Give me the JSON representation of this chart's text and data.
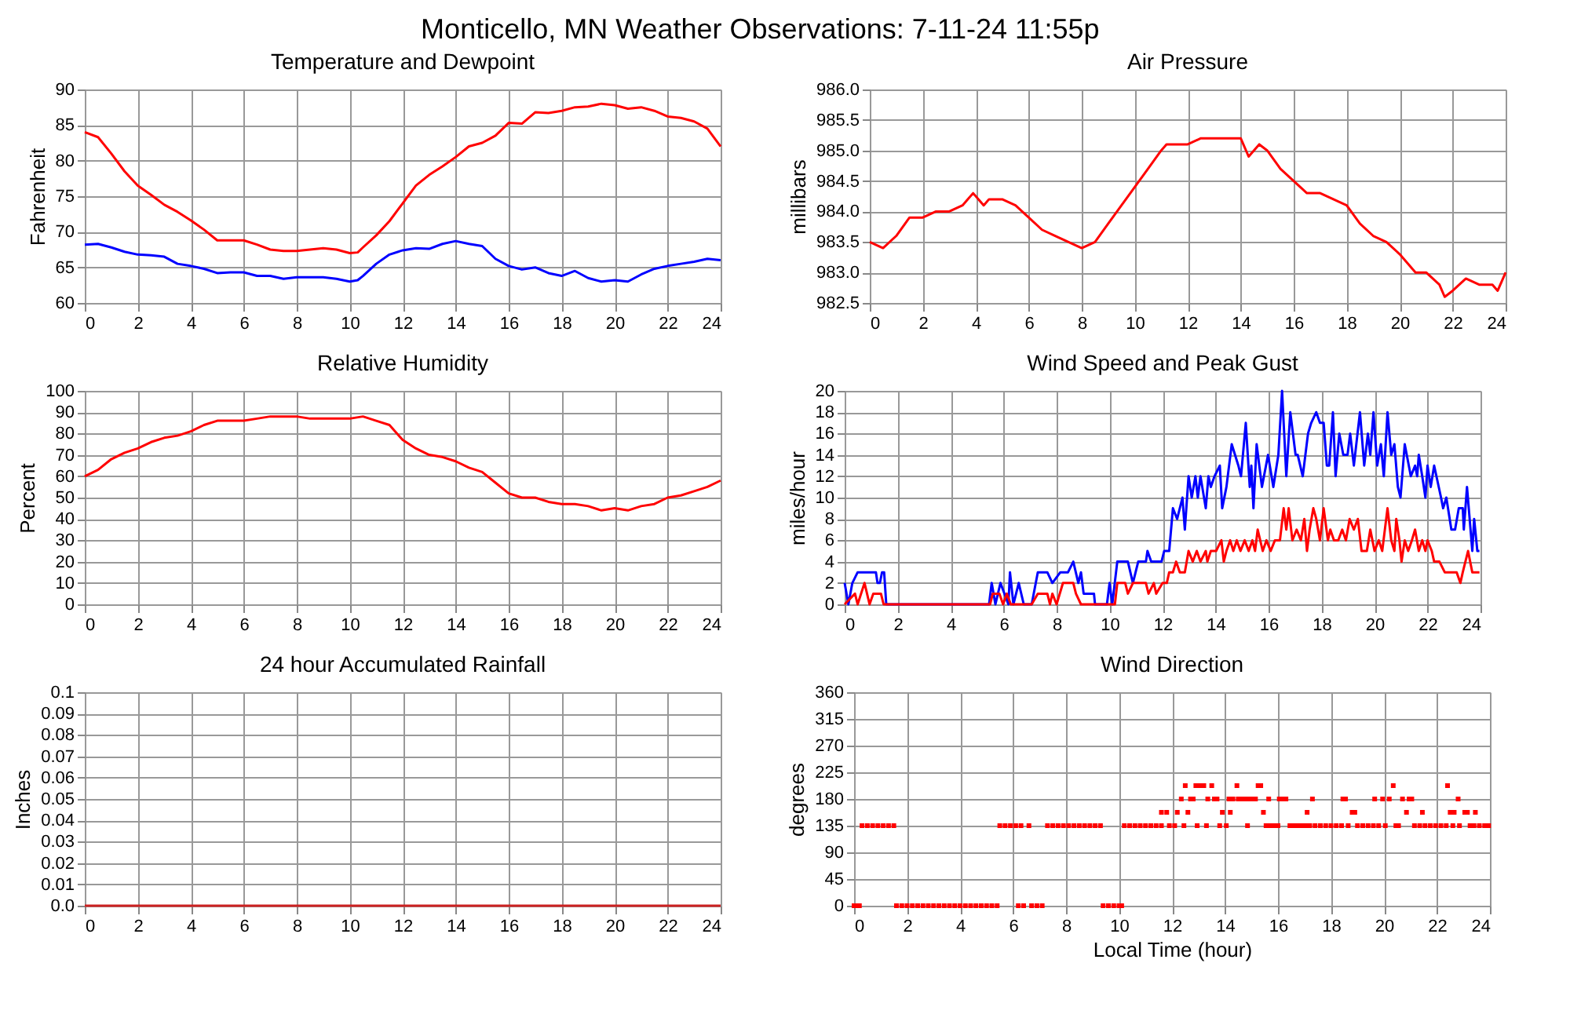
{
  "chart_data": [
    {
      "type": "line",
      "title": "Temperature and Dewpoint",
      "ylabel": "Fahrenheit",
      "annotations": [
        "Monticello, MN Weather Observations: 7-11-24 11:55p"
      ],
      "xlim": [
        0,
        24
      ],
      "xticks": [
        0,
        2,
        4,
        6,
        8,
        10,
        12,
        14,
        16,
        18,
        20,
        22,
        24
      ],
      "ylim": [
        60,
        90
      ],
      "yticks": [
        60,
        65,
        70,
        75,
        80,
        85,
        90
      ],
      "grid": true,
      "x": [
        0,
        0.5,
        1,
        1.5,
        2,
        2.5,
        3,
        3.5,
        4,
        4.5,
        5,
        5.5,
        6,
        6.5,
        7,
        7.5,
        8,
        8.5,
        9,
        9.5,
        10,
        10.3,
        10.5,
        11,
        11.5,
        12,
        12.5,
        13,
        13.5,
        14,
        14.5,
        15,
        15.5,
        16,
        16.5,
        17,
        17.5,
        18,
        18.5,
        19,
        19.5,
        20,
        20.5,
        21,
        21.5,
        22,
        22.5,
        23,
        23.5,
        24
      ],
      "series": [
        {
          "color": "#ff0000",
          "values": [
            84,
            83.3,
            81,
            78.5,
            76.5,
            75.2,
            73.8,
            72.8,
            71.6,
            70.3,
            68.8,
            68.8,
            68.8,
            68.2,
            67.5,
            67.3,
            67.3,
            67.5,
            67.7,
            67.5,
            67,
            67.1,
            67.8,
            69.5,
            71.5,
            74,
            76.5,
            78,
            79.2,
            80.5,
            82,
            82.5,
            83.5,
            85.3,
            85.2,
            86.8,
            86.7,
            87,
            87.5,
            87.6,
            88,
            87.8,
            87.3,
            87.5,
            87,
            86.2,
            86,
            85.5,
            84.5,
            82
          ]
        },
        {
          "color": "#0000ff",
          "values": [
            68.2,
            68.3,
            67.8,
            67.2,
            66.8,
            66.7,
            66.5,
            65.5,
            65.2,
            64.8,
            64.2,
            64.3,
            64.3,
            63.8,
            63.8,
            63.4,
            63.6,
            63.6,
            63.6,
            63.4,
            63,
            63.2,
            63.8,
            65.5,
            66.8,
            67.4,
            67.7,
            67.6,
            68.3,
            68.7,
            68.3,
            68,
            66.2,
            65.2,
            64.7,
            65,
            64.2,
            63.8,
            64.5,
            63.5,
            63,
            63.2,
            63,
            64,
            64.8,
            65.2,
            65.5,
            65.8,
            66.2,
            66
          ]
        }
      ]
    },
    {
      "type": "line",
      "title": "Air Pressure",
      "ylabel": "millibars",
      "xlim": [
        0,
        24
      ],
      "xticks": [
        0,
        2,
        4,
        6,
        8,
        10,
        12,
        14,
        16,
        18,
        20,
        22,
        24
      ],
      "ylim": [
        982.5,
        986
      ],
      "yticks": [
        982.5,
        {
          "value": 983,
          "label": "983.0"
        },
        983.5,
        {
          "value": 984,
          "label": "984.0"
        },
        984.5,
        {
          "value": 985,
          "label": "985.0"
        },
        985.5,
        {
          "value": 986,
          "label": "986.0"
        }
      ],
      "grid": true,
      "series": [
        {
          "color": "#ff0000",
          "x": [
            0,
            0.5,
            1,
            1.5,
            2,
            2.5,
            3,
            3.5,
            3.9,
            4.3,
            4.5,
            5,
            5.5,
            6,
            6.5,
            7,
            7.5,
            8,
            8.5,
            9,
            9.5,
            10,
            10.5,
            11,
            11.2,
            11.5,
            12,
            12.5,
            13,
            13.5,
            14,
            14.1,
            14.3,
            14.7,
            15,
            15.5,
            16,
            16.5,
            17,
            17.5,
            18,
            18.5,
            19,
            19.5,
            20,
            20.6,
            21,
            21.5,
            21.7,
            22,
            22.5,
            23,
            23.5,
            23.7,
            24
          ],
          "values": [
            983.5,
            983.4,
            983.6,
            983.9,
            983.9,
            984.0,
            984.0,
            984.1,
            984.3,
            984.1,
            984.2,
            984.2,
            984.1,
            983.9,
            983.7,
            983.6,
            983.5,
            983.4,
            983.5,
            983.8,
            984.1,
            984.4,
            984.7,
            985.0,
            985.1,
            985.1,
            985.1,
            985.2,
            985.2,
            985.2,
            985.2,
            985.1,
            984.9,
            985.1,
            985.0,
            984.7,
            984.5,
            984.3,
            984.3,
            984.2,
            984.1,
            983.8,
            983.6,
            983.5,
            983.3,
            983.0,
            983.0,
            982.8,
            982.6,
            982.7,
            982.9,
            982.8,
            982.8,
            982.7,
            983.0
          ]
        }
      ]
    },
    {
      "type": "line",
      "title": "Relative Humidity",
      "ylabel": "Percent",
      "xlim": [
        0,
        24
      ],
      "xticks": [
        0,
        2,
        4,
        6,
        8,
        10,
        12,
        14,
        16,
        18,
        20,
        22,
        24
      ],
      "ylim": [
        0,
        100
      ],
      "yticks": [
        0,
        10,
        20,
        30,
        40,
        50,
        60,
        70,
        80,
        90,
        100
      ],
      "grid": true,
      "series": [
        {
          "color": "#ff0000",
          "x": [
            0,
            0.5,
            1,
            1.5,
            2,
            2.5,
            3,
            3.5,
            4,
            4.5,
            5,
            5.5,
            6,
            6.5,
            7,
            7.5,
            8,
            8.5,
            9,
            9.5,
            10,
            10.5,
            11,
            11.5,
            12,
            12.5,
            13,
            13.5,
            14,
            14.5,
            15,
            15.5,
            16,
            16.5,
            17,
            17.5,
            18,
            18.5,
            19,
            19.5,
            20,
            20.5,
            21,
            21.5,
            22,
            22.5,
            23,
            23.5,
            24
          ],
          "values": [
            60,
            63,
            68,
            71,
            73,
            76,
            78,
            79,
            81,
            84,
            86,
            86,
            86,
            87,
            88,
            88,
            88,
            87,
            87,
            87,
            87,
            88,
            86,
            84,
            77,
            73,
            70,
            69,
            67,
            64,
            62,
            57,
            52,
            50,
            50,
            48,
            47,
            47,
            46,
            44,
            45,
            44,
            46,
            47,
            50,
            51,
            53,
            55,
            58
          ]
        }
      ]
    },
    {
      "type": "line",
      "title": "Wind Speed and Peak Gust",
      "ylabel": "miles/hour",
      "xlim": [
        0,
        24
      ],
      "xticks": [
        0,
        2,
        4,
        6,
        8,
        10,
        12,
        14,
        16,
        18,
        20,
        22,
        24
      ],
      "ylim": [
        0,
        20
      ],
      "yticks": [
        0,
        2,
        4,
        6,
        8,
        10,
        12,
        14,
        16,
        18,
        20
      ],
      "grid": true,
      "series": [
        {
          "color": "#0000ff",
          "x": [
            0,
            0.14,
            0.29,
            0.49,
            1.18,
            1.24,
            1.33,
            1.41,
            1.49,
            1.57,
            5.45,
            5.55,
            5.69,
            5.88,
            6.18,
            6.24,
            6.37,
            6.57,
            6.76,
            7.06,
            7.29,
            7.65,
            7.84,
            8.14,
            8.43,
            8.63,
            8.82,
            8.92,
            9.02,
            9.41,
            9.45,
            9.9,
            10.0,
            10.1,
            10.29,
            10.69,
            10.88,
            11.08,
            11.37,
            11.43,
            11.57,
            11.96,
            12.06,
            12.25,
            12.39,
            12.55,
            12.75,
            12.84,
            12.98,
            13.1,
            13.24,
            13.33,
            13.43,
            13.63,
            13.73,
            13.82,
            13.96,
            14.16,
            14.25,
            14.41,
            14.61,
            14.86,
            14.96,
            15.14,
            15.29,
            15.35,
            15.43,
            15.55,
            15.75,
            15.98,
            16.18,
            16.37,
            16.51,
            16.67,
            16.82,
            17.02,
            17.1,
            17.29,
            17.49,
            17.61,
            17.8,
            17.94,
            18.08,
            18.2,
            18.29,
            18.43,
            18.53,
            18.67,
            18.82,
            18.98,
            19.08,
            19.22,
            19.45,
            19.61,
            19.75,
            19.84,
            19.96,
            20.1,
            20.24,
            20.35,
            20.49,
            20.63,
            20.75,
            20.88,
            20.98,
            21.14,
            21.37,
            21.53,
            21.61,
            21.67,
            21.8,
            21.92,
            22.0,
            22.12,
            22.25,
            22.51,
            22.59,
            22.71,
            22.9,
            23.04,
            23.18,
            23.33,
            23.37,
            23.49,
            23.69,
            23.76,
            23.88,
            23.96
          ],
          "values": [
            2,
            0,
            2,
            3,
            3,
            2,
            2,
            3,
            3,
            0,
            0,
            2,
            0,
            2,
            0,
            3,
            0,
            2,
            0,
            0,
            3,
            3,
            2,
            3,
            3,
            4,
            2,
            3,
            1,
            1,
            0,
            0,
            2,
            0,
            4,
            4,
            2,
            4,
            4,
            5,
            4,
            4,
            5,
            5,
            9,
            8,
            10,
            7,
            12,
            10,
            12,
            10,
            12,
            9,
            12,
            11,
            12,
            13,
            9,
            11,
            15,
            13,
            12,
            17,
            11,
            13,
            9,
            15,
            11,
            14,
            11,
            14,
            20,
            12,
            18,
            14,
            14,
            12,
            16,
            17,
            18,
            17,
            17,
            13,
            13,
            18,
            12,
            16,
            14,
            14,
            16,
            13,
            18,
            13,
            16,
            14,
            18,
            13,
            15,
            12,
            18,
            14,
            15,
            11,
            10,
            15,
            12,
            13,
            12,
            14,
            12,
            10,
            13,
            11,
            13,
            10,
            9,
            10,
            7,
            7,
            9,
            9,
            7,
            11,
            5,
            8,
            5,
            5
          ]
        },
        {
          "color": "#ff0000",
          "x": [
            0,
            0.39,
            0.49,
            0.75,
            0.94,
            1.08,
            1.37,
            1.47,
            5.49,
            5.59,
            5.84,
            5.98,
            6.12,
            6.27,
            7.06,
            7.29,
            7.65,
            7.75,
            7.84,
            8.0,
            8.24,
            8.63,
            8.73,
            8.92,
            10.2,
            10.29,
            10.59,
            10.69,
            10.88,
            11.37,
            11.47,
            11.67,
            11.76,
            12.0,
            12.16,
            12.25,
            12.39,
            12.51,
            12.65,
            12.84,
            12.98,
            13.14,
            13.29,
            13.43,
            13.63,
            13.69,
            13.82,
            14.02,
            14.22,
            14.31,
            14.41,
            14.55,
            14.67,
            14.8,
            14.94,
            15.1,
            15.25,
            15.39,
            15.49,
            15.59,
            15.78,
            15.92,
            16.08,
            16.24,
            16.43,
            16.57,
            16.67,
            16.76,
            16.9,
            17.06,
            17.22,
            17.35,
            17.45,
            17.55,
            17.69,
            17.8,
            17.94,
            18.08,
            18.24,
            18.33,
            18.47,
            18.63,
            18.78,
            18.92,
            19.06,
            19.22,
            19.37,
            19.51,
            19.71,
            19.84,
            20.0,
            20.16,
            20.29,
            20.49,
            20.63,
            20.75,
            20.82,
            20.94,
            21.02,
            21.14,
            21.27,
            21.41,
            21.53,
            21.67,
            21.8,
            21.92,
            22.0,
            22.16,
            22.25,
            22.45,
            22.65,
            23.1,
            23.24,
            23.33,
            23.53,
            23.69,
            23.96
          ],
          "values": [
            0,
            1,
            0,
            2,
            0,
            1,
            1,
            0,
            0,
            1,
            1,
            0,
            1,
            0,
            0,
            1,
            1,
            0,
            1,
            0,
            2,
            2,
            1,
            0,
            0,
            2,
            2,
            1,
            2,
            2,
            1,
            2,
            1,
            2,
            2,
            3,
            3,
            4,
            3,
            3,
            5,
            4,
            5,
            4,
            5,
            4,
            5,
            5,
            6,
            4,
            5,
            6,
            5,
            6,
            5,
            6,
            5,
            6,
            5,
            7,
            5,
            6,
            5,
            6,
            6,
            9,
            7,
            9,
            6,
            7,
            6,
            8,
            5,
            7,
            9,
            8,
            6,
            9,
            6,
            7,
            6,
            6,
            7,
            6,
            8,
            7,
            8,
            5,
            5,
            7,
            5,
            6,
            5,
            9,
            6,
            5,
            8,
            6,
            4,
            6,
            5,
            6,
            7,
            5,
            6,
            5,
            6,
            5,
            4,
            4,
            3,
            3,
            2,
            3,
            5,
            3,
            3
          ]
        }
      ]
    },
    {
      "type": "line",
      "title": "24 hour Accumulated Rainfall",
      "ylabel": "Inches",
      "xlim": [
        0,
        24
      ],
      "xticks": [
        0,
        2,
        4,
        6,
        8,
        10,
        12,
        14,
        16,
        18,
        20,
        22,
        24
      ],
      "ylim": [
        0,
        0.1
      ],
      "yticks": [
        {
          "value": 0,
          "label": "0.0"
        },
        0.01,
        0.02,
        0.03,
        0.04,
        0.05,
        0.06,
        0.07,
        0.08,
        0.09,
        {
          "value": 0.1,
          "label": "0.1"
        }
      ],
      "grid": true,
      "series": [
        {
          "color": "#cc2222",
          "x": [
            0,
            24
          ],
          "values": [
            0,
            0
          ]
        }
      ]
    },
    {
      "type": "scatter",
      "title": "Wind Direction",
      "ylabel": "degrees",
      "xlabel": "Local Time (hour)",
      "marker": "square",
      "xlim": [
        0,
        24
      ],
      "xticks": [
        0,
        2,
        4,
        6,
        8,
        10,
        12,
        14,
        16,
        18,
        20,
        22,
        24
      ],
      "ylim": [
        0,
        360
      ],
      "yticks": [
        0,
        45,
        90,
        135,
        180,
        225,
        270,
        315,
        360
      ],
      "grid": true,
      "series": [
        {
          "color": "#ff0000",
          "x": [
            0,
            0.1,
            0.2,
            0.3,
            0.5,
            0.7,
            0.9,
            1.1,
            1.3,
            1.5,
            1.6,
            1.8,
            2.0,
            2.2,
            2.4,
            2.6,
            2.8,
            3.0,
            3.2,
            3.4,
            3.6,
            3.8,
            4.0,
            4.2,
            4.4,
            4.6,
            4.8,
            5.0,
            5.2,
            5.4,
            5.5,
            5.7,
            5.9,
            6.1,
            6.3,
            6.6,
            6.2,
            6.4,
            6.7,
            6.9,
            7.1,
            7.3,
            7.5,
            7.7,
            7.9,
            8.1,
            8.3,
            8.5,
            8.7,
            8.9,
            9.1,
            9.3,
            9.4,
            9.6,
            9.8,
            10.0,
            10.1,
            10.2,
            10.4,
            10.6,
            10.8,
            11.0,
            11.2,
            11.4,
            11.6,
            11.6,
            11.8,
            11.9,
            12.1,
            12.2,
            12.35,
            12.45,
            12.5,
            12.6,
            12.7,
            12.8,
            12.9,
            12.95,
            13.0,
            13.1,
            13.2,
            13.3,
            13.35,
            13.5,
            13.6,
            13.7,
            13.8,
            13.9,
            14.05,
            14.15,
            14.2,
            14.3,
            14.45,
            14.5,
            14.6,
            14.7,
            14.8,
            14.85,
            14.95,
            15.05,
            15.15,
            15.25,
            15.35,
            15.45,
            15.55,
            15.65,
            15.7,
            15.85,
            16.0,
            16.05,
            16.2,
            16.3,
            16.45,
            16.6,
            16.75,
            16.9,
            17.05,
            17.1,
            17.2,
            17.3,
            17.4,
            17.6,
            17.8,
            18.0,
            18.2,
            18.4,
            18.45,
            18.55,
            18.65,
            18.8,
            18.9,
            19.0,
            19.2,
            19.4,
            19.6,
            19.65,
            19.8,
            19.95,
            20.05,
            20.2,
            20.35,
            20.45,
            20.55,
            20.7,
            20.85,
            20.95,
            21.05,
            21.15,
            21.35,
            21.45,
            21.55,
            21.75,
            21.95,
            22.15,
            22.35,
            22.4,
            22.5,
            22.6,
            22.65,
            22.8,
            22.85,
            23.05,
            23.15,
            23.25,
            23.4,
            23.45,
            23.6,
            23.8,
            23.95
          ],
          "values": [
            0,
            0,
            0,
            135,
            135,
            135,
            135,
            135,
            135,
            135,
            0,
            0,
            0,
            0,
            0,
            0,
            0,
            0,
            0,
            0,
            0,
            0,
            0,
            0,
            0,
            0,
            0,
            0,
            0,
            0,
            135,
            135,
            135,
            135,
            135,
            135,
            0,
            0,
            0,
            0,
            0,
            135,
            135,
            135,
            135,
            135,
            135,
            135,
            135,
            135,
            135,
            135,
            0,
            0,
            0,
            0,
            0,
            135,
            135,
            135,
            135,
            135,
            135,
            135,
            135,
            157.5,
            157.5,
            135,
            135,
            157.5,
            180,
            135,
            202.5,
            157.5,
            180,
            180,
            202.5,
            135,
            202.5,
            202.5,
            202.5,
            135,
            180,
            202.5,
            180,
            180,
            135,
            157.5,
            135,
            180,
            157.5,
            180,
            202.5,
            180,
            180,
            180,
            180,
            135,
            180,
            180,
            180,
            202.5,
            202.5,
            157.5,
            135,
            180,
            135,
            135,
            135,
            180,
            180,
            180,
            135,
            135,
            135,
            135,
            135,
            157.5,
            135,
            180,
            135,
            135,
            135,
            135,
            135,
            135,
            180,
            180,
            135,
            157.5,
            157.5,
            135,
            135,
            135,
            135,
            180,
            135,
            180,
            135,
            180,
            202.5,
            135,
            135,
            180,
            157.5,
            180,
            180,
            135,
            135,
            157.5,
            135,
            135,
            135,
            135,
            135,
            202.5,
            157.5,
            135,
            157.5,
            180,
            135,
            157.5,
            157.5,
            135,
            135,
            157.5,
            135,
            135,
            135
          ]
        }
      ]
    }
  ]
}
